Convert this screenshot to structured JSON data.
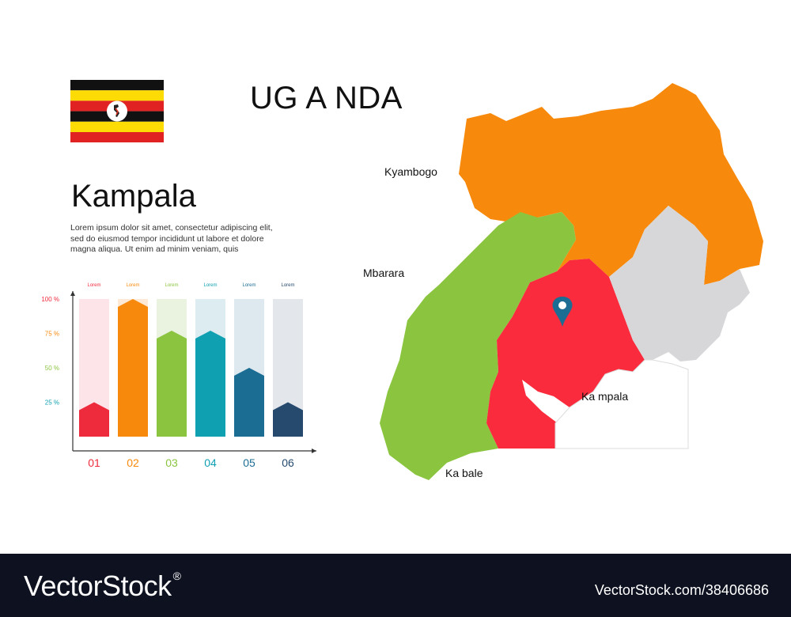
{
  "country": "UG A NDA",
  "city": "Kampala",
  "description": "Lorem ipsum dolor sit amet, consectetur adipiscing elit, sed do eiusmod tempor incididunt ut labore et dolore magna aliqua. Ut enim ad minim veniam, quis",
  "map": {
    "labels": [
      "Kyambogo",
      "Mbarara",
      "Ka mpala",
      "Ka bale"
    ],
    "marker": "map-pin-icon",
    "region_colors": [
      "#f7890c",
      "#8bc540",
      "#fa2b3c",
      "#d7d7d9"
    ]
  },
  "chart_data": {
    "type": "bar",
    "categories": [
      "01",
      "02",
      "03",
      "04",
      "05",
      "06"
    ],
    "series_labels": [
      "Lorem",
      "Lorem",
      "Lorem",
      "Lorem",
      "Lorem",
      "Lorem"
    ],
    "values": [
      25,
      100,
      77,
      77,
      50,
      25
    ],
    "yticks": [
      "100 %",
      "75 %",
      "50 %",
      "25 %"
    ],
    "ylim": [
      0,
      100
    ],
    "colors": [
      "#ee2b3d",
      "#f7890c",
      "#8bc540",
      "#0fa0b1",
      "#1c6d93",
      "#254a6e"
    ],
    "bg_colors": [
      "#fde4e8",
      "#fde9d5",
      "#eaf3df",
      "#dcecf1",
      "#dde8ef",
      "#e3e7ec"
    ],
    "tick_colors": [
      "#ee2b3d",
      "#f7890c",
      "#8bc540",
      "#0fa0b1"
    ]
  },
  "footer": {
    "brand": "VectorStock",
    "registered": "®",
    "url": "VectorStock.com/38406686"
  }
}
